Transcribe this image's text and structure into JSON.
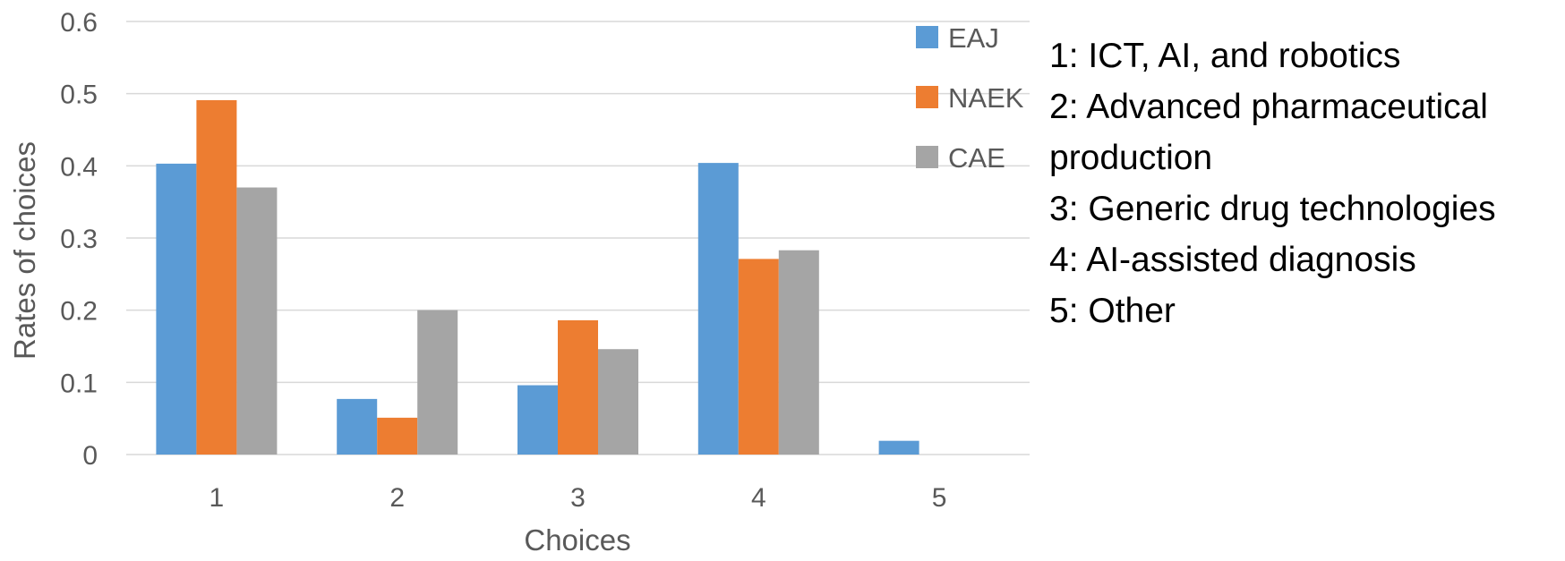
{
  "chart_data": {
    "type": "bar",
    "categories": [
      "1",
      "2",
      "3",
      "4",
      "5"
    ],
    "series": [
      {
        "name": "EAJ",
        "color": "#5B9BD5",
        "values": [
          0.403,
          0.077,
          0.096,
          0.404,
          0.019
        ]
      },
      {
        "name": "NAEK",
        "color": "#ED7D31",
        "values": [
          0.491,
          0.051,
          0.186,
          0.271,
          0
        ]
      },
      {
        "name": "CAE",
        "color": "#A5A5A5",
        "values": [
          0.37,
          0.2,
          0.146,
          0.283,
          0
        ]
      }
    ],
    "xlabel": "Choices",
    "ylabel": "Rates of choices",
    "ylim": [
      0,
      0.6
    ],
    "yticks": [
      "0",
      "0.1",
      "0.2",
      "0.3",
      "0.4",
      "0.5",
      "0.6"
    ],
    "grid": true,
    "legend_position": "top-right",
    "gridline_color": "#D9D9D9",
    "axis_text_color": "#595959"
  },
  "key": {
    "items": [
      "1: ICT, AI, and robotics",
      "2: Advanced pharmaceutical",
      "production",
      "3: Generic drug technologies",
      "4: AI-assisted diagnosis",
      "5: Other"
    ]
  }
}
